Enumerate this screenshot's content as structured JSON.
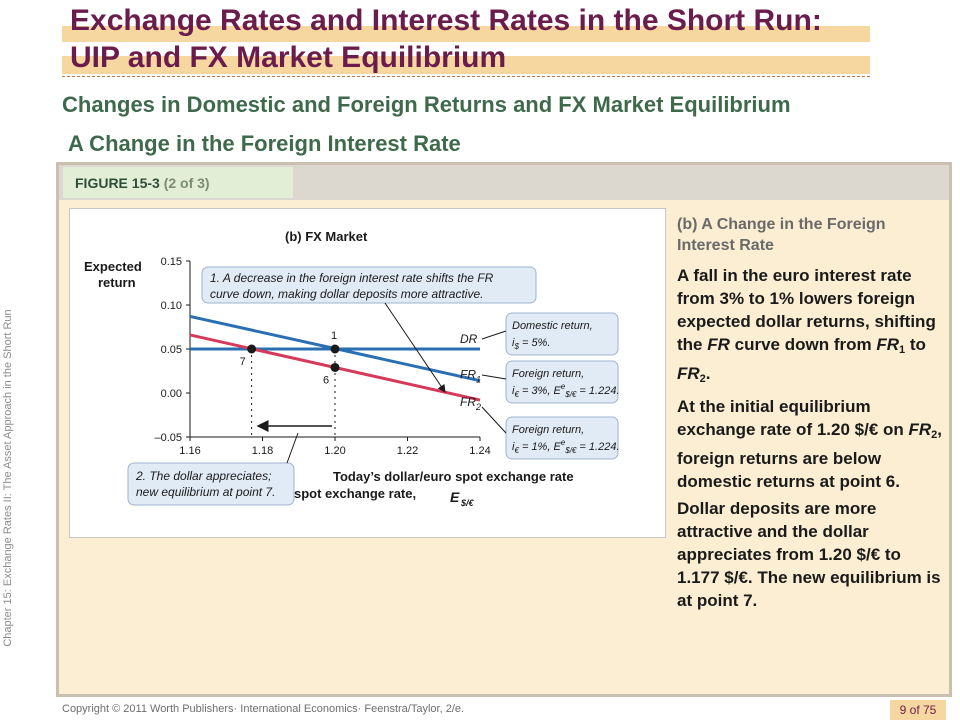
{
  "title": {
    "line1": "Exchange Rates and Interest Rates in the Short Run:",
    "line2": "UIP and FX Market Equilibrium"
  },
  "subtitle": "Changes in Domestic and Foreign Returns and FX Market Equilibrium",
  "section_title": "A Change in the Foreign Interest Rate",
  "figure": {
    "label": "FIGURE 15-3",
    "part": "(2 of 3)"
  },
  "side_text": "Chapter 15: Exchange Rates II: The Asset Approach in the Short Run",
  "right_panel": {
    "heading": "(b) A Change in the Foreign Interest Rate",
    "p1": {
      "a": "A fall in the euro interest rate from 3% to 1% lowers foreign expected dollar returns, shifting the ",
      "fr": "FR",
      "b": " curve down from ",
      "fr1": "FR",
      "sub1": "1",
      "c": " to ",
      "fr2": "FR",
      "sub2": "2",
      "d": "."
    },
    "p2": {
      "a": "At the initial equilibrium exchange rate of 1.20 $/€ on ",
      "fr": "FR",
      "sub": "2",
      "b": ", foreign returns are below domestic returns at point 6."
    },
    "p3": "Dollar deposits are more attractive and the dollar appreciates from 1.20 $/€ to 1.177 $/€. The new equilibrium is at point 7."
  },
  "footer": "Copyright © 2011 Worth Publishers· International Economics· Feenstra/Taylor, 2/e.",
  "page_number": "9 of 75",
  "colors": {
    "title": "#6a1c4d",
    "title_band": "#f7d7a0",
    "green_heading": "#3e6a4b",
    "panel_bg": "#fbeed3",
    "dr_curve": "#2a6fb2",
    "fr2_curve": "#d63a5a",
    "callout_bg": "#e0ebf6"
  },
  "chart_data": {
    "type": "line",
    "title": "(b) FX Market",
    "ylabel": "Expected return",
    "xlabel": "Today’s dollar/euro spot exchange rate,",
    "xlabel_symbol": "E",
    "xlabel_sub": "$/€",
    "xlim": [
      1.16,
      1.24
    ],
    "ylim": [
      -0.05,
      0.15
    ],
    "x_ticks": [
      "1.16",
      "1.18",
      "1.20",
      "1.22",
      "1.24"
    ],
    "y_ticks": [
      "0.15",
      "0.10",
      "0.05",
      "0.00",
      "–0.05"
    ],
    "series": [
      {
        "name": "DR",
        "points": [
          [
            1.16,
            0.05
          ],
          [
            1.24,
            0.05
          ]
        ]
      },
      {
        "name": "FR",
        "sub": "1",
        "points": [
          [
            1.16,
            0.087
          ],
          [
            1.24,
            0.014
          ]
        ]
      },
      {
        "name": "FR",
        "sub": "2",
        "points": [
          [
            1.16,
            0.066
          ],
          [
            1.24,
            -0.008
          ]
        ]
      }
    ],
    "points": [
      {
        "label": "1",
        "x": 1.2,
        "y": 0.05
      },
      {
        "label": "6",
        "x": 1.2,
        "y": 0.029
      },
      {
        "label": "7",
        "x": 1.177,
        "y": 0.05
      }
    ],
    "callouts": {
      "top": [
        "1. A decrease in the foreign interest rate shifts the FR",
        "curve down, making dollar deposits more attractive."
      ],
      "bottom": [
        "2. The dollar appreciates;",
        "new equilibrium at point 7."
      ],
      "dr": [
        "Domestic return,",
        "i",
        "$",
        " = 5%."
      ],
      "fr1": [
        "Foreign return,",
        "i",
        "€",
        " = 3%, E",
        "e",
        "$/€",
        " = 1.224."
      ],
      "fr2": [
        "Foreign return,",
        "i",
        "€",
        " = 1%, E",
        "e",
        "$/€",
        " = 1.224."
      ]
    }
  }
}
